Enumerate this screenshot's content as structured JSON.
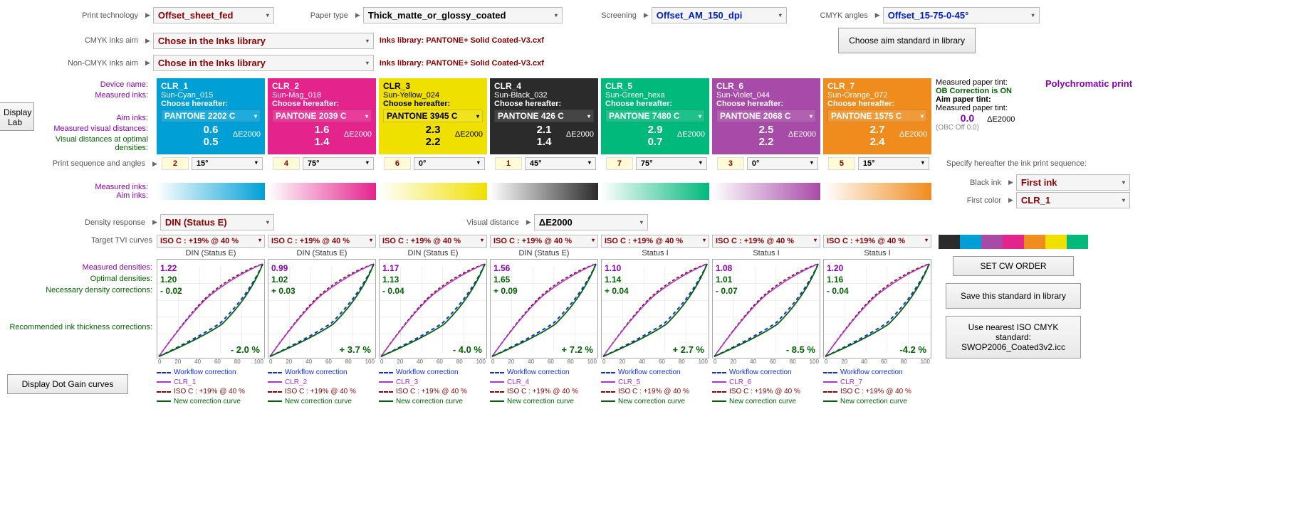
{
  "top": {
    "print_tech_label": "Print technology",
    "print_tech_value": "Offset_sheet_fed",
    "paper_type_label": "Paper type",
    "paper_type_value": "Thick_matte_or_glossy_coated",
    "screening_label": "Screening",
    "screening_value": "Offset_AM_150_dpi",
    "cmyk_angles_label": "CMYK angles",
    "cmyk_angles_value": "Offset_15-75-0-45°",
    "cmyk_inks_aim_label": "CMYK inks aim",
    "cmyk_inks_aim_value": "Chose in the Inks library",
    "inks_library_1": "Inks library:  PANTONE+ Solid Coated-V3.cxf",
    "noncmyk_inks_aim_label": "Non-CMYK inks aim",
    "noncmyk_inks_aim_value": "Chose in the Inks library",
    "inks_library_2": "Inks library:  PANTONE+ Solid Coated-V3.cxf",
    "choose_aim_btn": "Choose aim standard in library",
    "display_lab_btn": "Display\nLab",
    "poly_print": "Polychromatic print"
  },
  "labels": {
    "device_name": "Device name:",
    "measured_inks": "Measured inks:",
    "aim_inks": "Aim inks:",
    "measured_visual_distances": "Measured visual distances:",
    "visual_distances_optimal": "Visual distances at optimal densities:",
    "print_seq_label": "Print sequence and angles",
    "measured_inks2": "Measured inks:",
    "aim_inks2": "Aim inks:",
    "density_response_label": "Density response",
    "density_response_value": "DIN (Status E)",
    "visual_distance_label": "Visual distance",
    "visual_distance_value": "ΔE2000",
    "target_tvi_label": "Target TVI curves",
    "measured_densities": "Measured densities:",
    "optimal_densities": "Optimal densities:",
    "necessary_corrections": "Necessary density corrections:",
    "recommended_thickness": "Recommended ink thickness corrections:",
    "display_dot_gain_btn": "Display Dot Gain curves",
    "specify_seq": "Specify hereafter the ink print sequence:",
    "black_ink_label": "Black ink",
    "black_ink_value": "First ink",
    "first_color_label": "First color",
    "first_color_value": "CLR_1",
    "set_cw_order": "SET CW ORDER",
    "save_standard": "Save this standard in library",
    "use_nearest": "Use nearest ISO CMYK standard: SWOP2006_Coated3v2.icc"
  },
  "paper": {
    "measured_tint": "Measured paper tint:",
    "ob_on": "OB Correction is ON",
    "aim_tint": "Aim paper tint:",
    "measured_tint2": "Measured paper tint:",
    "value": "0.0",
    "de": "ΔE2000",
    "obc_off": "(OBC Off 0.0)"
  },
  "cards": [
    {
      "name": "CLR_1",
      "ink": "Sun-Cyan_015",
      "choose": "Choose hereafter:",
      "aim": "PANTONE 2202 C",
      "mvd": "0.6",
      "vdo": "0.5",
      "bg": "#00a0d6",
      "fg": "#ffffff",
      "seq": "2",
      "ang": "15°",
      "grad": "#00a0d6"
    },
    {
      "name": "CLR_2",
      "ink": "Sun-Mag_018",
      "choose": "Choose hereafter:",
      "aim": "PANTONE 2039 C",
      "mvd": "1.6",
      "vdo": "1.4",
      "bg": "#e5238d",
      "fg": "#ffffff",
      "seq": "4",
      "ang": "75°",
      "grad": "#e5238d"
    },
    {
      "name": "CLR_3",
      "ink": "Sun-Yellow_024",
      "choose": "Choose hereafter:",
      "aim": "PANTONE 3945 C",
      "mvd": "2.3",
      "vdo": "2.2",
      "bg": "#f0e000",
      "fg": "#000000",
      "seq": "6",
      "ang": "0°",
      "grad": "#f0e000"
    },
    {
      "name": "CLR_4",
      "ink": "Sun-Black_032",
      "choose": "Choose hereafter:",
      "aim": "PANTONE 426 C",
      "mvd": "2.1",
      "vdo": "1.4",
      "bg": "#2b2b2b",
      "fg": "#ffffff",
      "seq": "1",
      "ang": "45°",
      "grad": "#2b2b2b"
    },
    {
      "name": "CLR_5",
      "ink": "Sun-Green_hexa",
      "choose": "Choose hereafter:",
      "aim": "PANTONE 7480 C",
      "mvd": "2.9",
      "vdo": "0.7",
      "bg": "#00b97a",
      "fg": "#ffffff",
      "seq": "7",
      "ang": "75°",
      "grad": "#00b97a"
    },
    {
      "name": "CLR_6",
      "ink": "Sun-Violet_044",
      "choose": "Choose hereafter:",
      "aim": "PANTONE 2068 C",
      "mvd": "2.5",
      "vdo": "2.2",
      "bg": "#a84aa8",
      "fg": "#ffffff",
      "seq": "3",
      "ang": "0°",
      "grad": "#a84aa8"
    },
    {
      "name": "CLR_7",
      "ink": "Sun-Orange_072",
      "choose": "Choose hereafter:",
      "aim": "PANTONE 1575 C",
      "mvd": "2.7",
      "vdo": "2.4",
      "bg": "#f08c1e",
      "fg": "#ffffff",
      "seq": "5",
      "ang": "15°",
      "grad": "#f08c1e"
    }
  ],
  "de_label": "ΔE2000",
  "charts": [
    {
      "title": "DIN (Status E)",
      "tvi": "ISO C : +19% @ 40 %",
      "m": "1.22",
      "o": "1.20",
      "c": "- 0.02",
      "rec": "- 2.0 %",
      "clr": "CLR_1",
      "color": "#00a0d6"
    },
    {
      "title": "DIN (Status E)",
      "tvi": "ISO C : +19% @ 40 %",
      "m": "0.99",
      "o": "1.02",
      "c": "+ 0.03",
      "rec": "+ 3.7 %",
      "clr": "CLR_2",
      "color": "#e5238d"
    },
    {
      "title": "DIN (Status E)",
      "tvi": "ISO C : +19% @ 40 %",
      "m": "1.17",
      "o": "1.13",
      "c": "- 0.04",
      "rec": "- 4.0 %",
      "clr": "CLR_3",
      "color": "#c0b000"
    },
    {
      "title": "DIN (Status E)",
      "tvi": "ISO C : +19% @ 40 %",
      "m": "1.56",
      "o": "1.65",
      "c": "+ 0.09",
      "rec": "+ 7.2 %",
      "clr": "CLR_4",
      "color": "#2b2b2b"
    },
    {
      "title": "Status I",
      "tvi": "ISO C : +19% @ 40 %",
      "m": "1.10",
      "o": "1.14",
      "c": "+ 0.04",
      "rec": "+ 2.7 %",
      "clr": "CLR_5",
      "color": "#00b97a"
    },
    {
      "title": "Status I",
      "tvi": "ISO C : +19% @ 40 %",
      "m": "1.08",
      "o": "1.01",
      "c": "- 0.07",
      "rec": "- 8.5 %",
      "clr": "CLR_6",
      "color": "#a84aa8"
    },
    {
      "title": "Status I",
      "tvi": "ISO C : +19% @ 40 %",
      "m": "1.20",
      "o": "1.16",
      "c": "- 0.04",
      "rec": "-4.2 %",
      "clr": "CLR_7",
      "color": "#f08c1e"
    }
  ],
  "chart_legend": {
    "workflow": "Workflow correction",
    "iso": "ISO C : +19% @ 40 %",
    "newcorr": "New correction curve"
  },
  "axis_ticks": [
    "0",
    "20",
    "40",
    "60",
    "80",
    "100"
  ],
  "strip_colors": [
    "#2b2b2b",
    "#00a0d6",
    "#a84aa8",
    "#e5238d",
    "#f08c1e",
    "#f0e000",
    "#00b97a"
  ],
  "curve_colors": {
    "workflow": "#1030e0",
    "iso": "#8b0000",
    "newcorr": "#006400",
    "clr_line": "#b030d0"
  }
}
